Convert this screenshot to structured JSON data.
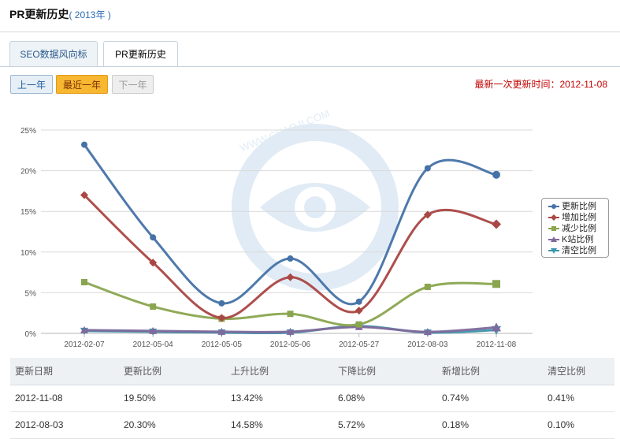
{
  "header": {
    "title": "PR更新历史",
    "year": "( 2013年 )"
  },
  "tabs": [
    {
      "label": "SEO数据风向标",
      "active": false
    },
    {
      "label": "PR更新历史",
      "active": true
    }
  ],
  "nav": {
    "prev_label": "上一年",
    "recent_label": "最近一年",
    "next_label": "下一年"
  },
  "update_time": "最新一次更新时间：2012-11-08",
  "chart_data": {
    "type": "line",
    "x": [
      "2012-02-07",
      "2012-05-04",
      "2012-05-05",
      "2012-05-06",
      "2012-05-27",
      "2012-08-03",
      "2012-11-08"
    ],
    "ylim": [
      0,
      25
    ],
    "yticks": [
      "0%",
      "5%",
      "10%",
      "15%",
      "20%",
      "25%"
    ],
    "grid": true,
    "legend_position": "right",
    "watermark": "WWW.CHAOJI.COM",
    "series": [
      {
        "name": "更新比例",
        "color": "#4572a7",
        "marker": "circle",
        "values": [
          23.2,
          11.8,
          3.7,
          9.2,
          3.9,
          20.3,
          19.5
        ]
      },
      {
        "name": "增加比例",
        "color": "#aa4643",
        "marker": "diamond",
        "values": [
          17.0,
          8.7,
          1.9,
          6.9,
          2.8,
          14.58,
          13.42
        ]
      },
      {
        "name": "减少比例",
        "color": "#89a54e",
        "marker": "square",
        "values": [
          6.3,
          3.3,
          1.8,
          2.4,
          1.1,
          5.72,
          6.08
        ]
      },
      {
        "name": "K站比例",
        "color": "#80699b",
        "marker": "triangle",
        "values": [
          0.4,
          0.3,
          0.2,
          0.2,
          0.8,
          0.18,
          0.74
        ]
      },
      {
        "name": "清空比例",
        "color": "#3d96ae",
        "marker": "triangle-down",
        "values": [
          0.3,
          0.2,
          0.1,
          0.1,
          0.9,
          0.1,
          0.41
        ]
      }
    ]
  },
  "table": {
    "headers": [
      "更新日期",
      "更新比例",
      "上升比例",
      "下降比例",
      "新增比例",
      "清空比例"
    ],
    "rows": [
      [
        "2012-11-08",
        "19.50%",
        "13.42%",
        "6.08%",
        "0.74%",
        "0.41%"
      ],
      [
        "2012-08-03",
        "20.30%",
        "14.58%",
        "5.72%",
        "0.18%",
        "0.10%"
      ]
    ]
  }
}
